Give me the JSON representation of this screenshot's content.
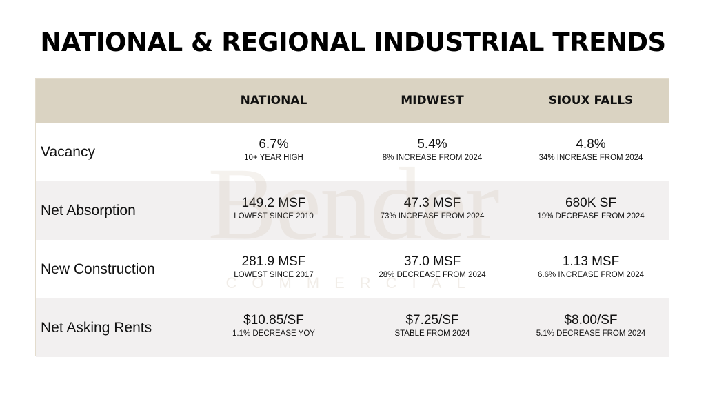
{
  "title": "NATIONAL & REGIONAL INDUSTRIAL TRENDS",
  "columns": [
    "NATIONAL",
    "MIDWEST",
    "SIOUX FALLS"
  ],
  "rows": [
    {
      "label": "Vacancy",
      "cells": [
        {
          "value": "6.7%",
          "note": "10+ YEAR HIGH"
        },
        {
          "value": "5.4%",
          "note": "8% INCREASE FROM 2024"
        },
        {
          "value": "4.8%",
          "note": "34% INCREASE FROM 2024"
        }
      ]
    },
    {
      "label": "Net Absorption",
      "cells": [
        {
          "value": "149.2 MSF",
          "note": "LOWEST SINCE 2010"
        },
        {
          "value": "47.3 MSF",
          "note": "73% INCREASE FROM 2024"
        },
        {
          "value": "680K SF",
          "note": "19% DECREASE FROM 2024"
        }
      ]
    },
    {
      "label": "New Construction",
      "cells": [
        {
          "value": "281.9 MSF",
          "note": "LOWEST SINCE 2017"
        },
        {
          "value": "37.0 MSF",
          "note": "28% DECREASE FROM 2024"
        },
        {
          "value": "1.13 MSF",
          "note": "6.6% INCREASE FROM 2024"
        }
      ]
    },
    {
      "label": "Net Asking Rents",
      "cells": [
        {
          "value": "$10.85/SF",
          "note": "1.1% DECREASE YOY"
        },
        {
          "value": "$7.25/SF",
          "note": "STABLE FROM 2024"
        },
        {
          "value": "$8.00/SF",
          "note": "5.1% DECREASE FROM 2024"
        }
      ]
    }
  ],
  "watermark": {
    "name": "Bender",
    "sub": "COMMERCIAL"
  },
  "colors": {
    "header": "#dad3c2",
    "alt_row": "#f2f0f0"
  }
}
